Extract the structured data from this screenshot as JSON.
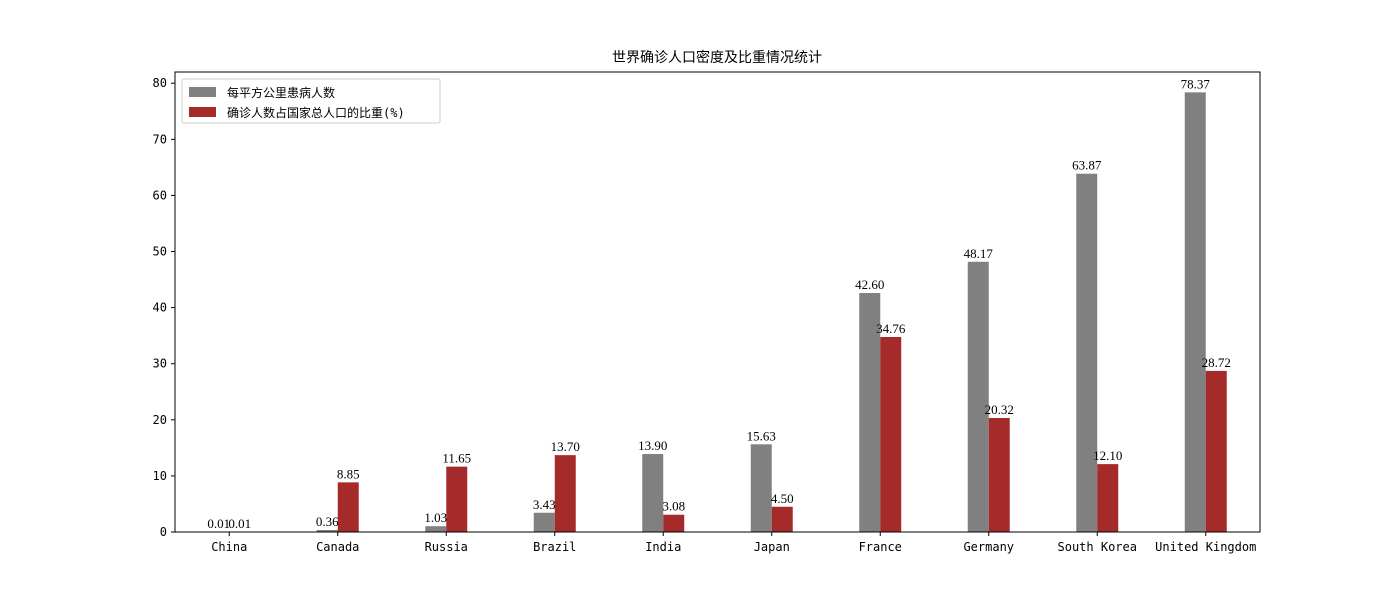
{
  "chart_data": {
    "type": "bar",
    "title": "世界确诊人口密度及比重情况统计",
    "xlabel": "",
    "ylabel": "",
    "ylim": [
      0,
      82
    ],
    "yticks": [
      0,
      10,
      20,
      30,
      40,
      50,
      60,
      70,
      80
    ],
    "grid": false,
    "legend_position": "top-left",
    "categories": [
      "China",
      "Canada",
      "Russia",
      "Brazil",
      "India",
      "Japan",
      "France",
      "Germany",
      "South Korea",
      "United Kingdom"
    ],
    "series": [
      {
        "name": "每平方公里患病人数",
        "color": "#808080",
        "values": [
          0.01,
          0.36,
          1.03,
          3.43,
          13.9,
          15.63,
          42.6,
          48.17,
          63.87,
          78.37
        ],
        "labels": [
          "0.01",
          "0.36",
          "1.03",
          "3.43",
          "13.90",
          "15.63",
          "42.60",
          "48.17",
          "63.87",
          "78.37"
        ]
      },
      {
        "name": "确诊人数占国家总人口的比重(%)",
        "color": "#a52a2a",
        "values": [
          0.01,
          8.85,
          11.65,
          13.7,
          3.08,
          4.5,
          34.76,
          20.32,
          12.1,
          28.72
        ],
        "labels": [
          "0.01",
          "8.85",
          "11.65",
          "13.70",
          "3.08",
          "4.50",
          "34.76",
          "20.32",
          "12.10",
          "28.72"
        ]
      }
    ]
  }
}
